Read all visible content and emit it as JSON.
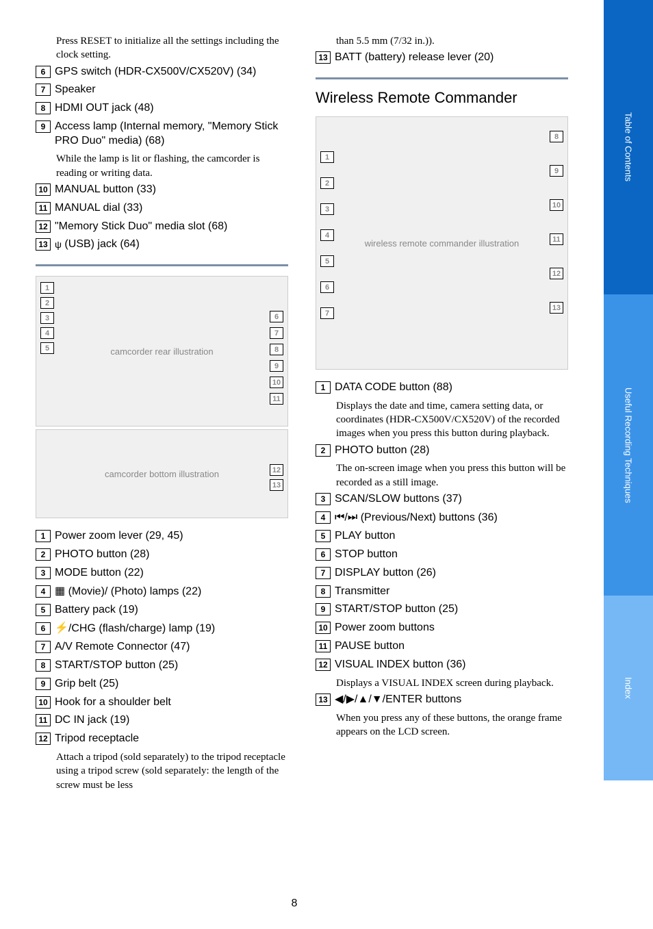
{
  "page_number": "8",
  "divider_color": "#7a8fa8",
  "sidebar": {
    "tabs": [
      {
        "label": "Table of Contents",
        "bg": "#0a66c2"
      },
      {
        "label": "Useful Recording Techniques",
        "bg": "#3b93e8"
      },
      {
        "label": "Index",
        "bg": "#75b8f5"
      }
    ]
  },
  "left_column": {
    "intro_note": "Press RESET to initialize all the settings including the clock setting.",
    "list_a": [
      {
        "n": "6",
        "text": "GPS switch (HDR-CX500V/CX520V) (34)"
      },
      {
        "n": "7",
        "text": "Speaker"
      },
      {
        "n": "8",
        "text": "HDMI OUT jack (48)"
      },
      {
        "n": "9",
        "text": "Access lamp (Internal memory, \"Memory Stick PRO Duo\" media) (68)",
        "note": "While the lamp is lit or flashing, the camcorder is reading or writing data."
      },
      {
        "n": "10",
        "text": "MANUAL button (33)"
      },
      {
        "n": "11",
        "text": "MANUAL dial (33)"
      },
      {
        "n": "12",
        "text": "\"Memory Stick Duo\" media slot (68)"
      },
      {
        "n": "13",
        "text": "(USB) jack (64)",
        "icon": "usb"
      }
    ],
    "figure1_callouts_left": [
      "1",
      "2",
      "3",
      "4",
      "5"
    ],
    "figure1_callouts_right": [
      "6",
      "7",
      "8",
      "9",
      "10",
      "11"
    ],
    "figure2_callouts_right": [
      "12",
      "13"
    ],
    "list_b": [
      {
        "n": "1",
        "text": "Power zoom lever (29, 45)"
      },
      {
        "n": "2",
        "text": "PHOTO button (28)"
      },
      {
        "n": "3",
        "text": "MODE button (22)"
      },
      {
        "n": "4",
        "text": "(Movie)/       (Photo) lamps (22)",
        "icon": "movie-photo"
      },
      {
        "n": "5",
        "text": "Battery pack (19)"
      },
      {
        "n": "6",
        "text": "/CHG (flash/charge) lamp (19)",
        "icon": "flash"
      },
      {
        "n": "7",
        "text": "A/V Remote Connector (47)"
      },
      {
        "n": "8",
        "text": "START/STOP button (25)"
      },
      {
        "n": "9",
        "text": "Grip belt (25)"
      },
      {
        "n": "10",
        "text": "Hook for a shoulder belt"
      },
      {
        "n": "11",
        "text": "DC IN jack (19)"
      },
      {
        "n": "12",
        "text": "Tripod receptacle",
        "note": "Attach a tripod (sold separately) to the tripod receptacle using a tripod screw (sold separately: the length of the screw must be less"
      }
    ]
  },
  "right_column": {
    "cont_text": "than 5.5 mm (7/32 in.)).",
    "cont_item": {
      "n": "13",
      "text": "BATT (battery) release lever (20)"
    },
    "section_title": "Wireless Remote Commander",
    "remote_callouts_left": [
      "1",
      "2",
      "3",
      "4",
      "5",
      "6",
      "7"
    ],
    "remote_callouts_right": [
      "8",
      "9",
      "10",
      "11",
      "12",
      "13"
    ],
    "list_c": [
      {
        "n": "1",
        "text": "DATA CODE button (88)",
        "note": "Displays the date and time, camera setting data, or coordinates (HDR-CX500V/CX520V) of the recorded images when you press this button during playback."
      },
      {
        "n": "2",
        "text": "PHOTO button (28)",
        "note": "The on-screen image when you press this button will be recorded as a still image."
      },
      {
        "n": "3",
        "text": "SCAN/SLOW buttons (37)"
      },
      {
        "n": "4",
        "text": "(Previous/Next) buttons (36)",
        "icon": "prevnext"
      },
      {
        "n": "5",
        "text": "PLAY button"
      },
      {
        "n": "6",
        "text": "STOP button"
      },
      {
        "n": "7",
        "text": "DISPLAY button (26)"
      },
      {
        "n": "8",
        "text": "Transmitter"
      },
      {
        "n": "9",
        "text": "START/STOP button (25)"
      },
      {
        "n": "10",
        "text": "Power zoom buttons"
      },
      {
        "n": "11",
        "text": "PAUSE button"
      },
      {
        "n": "12",
        "text": "VISUAL INDEX button (36)",
        "note": "Displays a VISUAL INDEX screen during playback."
      },
      {
        "n": "13",
        "text": "◀/▶/▲/▼/ENTER buttons",
        "note": "When you press any of these buttons, the orange frame appears on the LCD screen."
      }
    ]
  }
}
